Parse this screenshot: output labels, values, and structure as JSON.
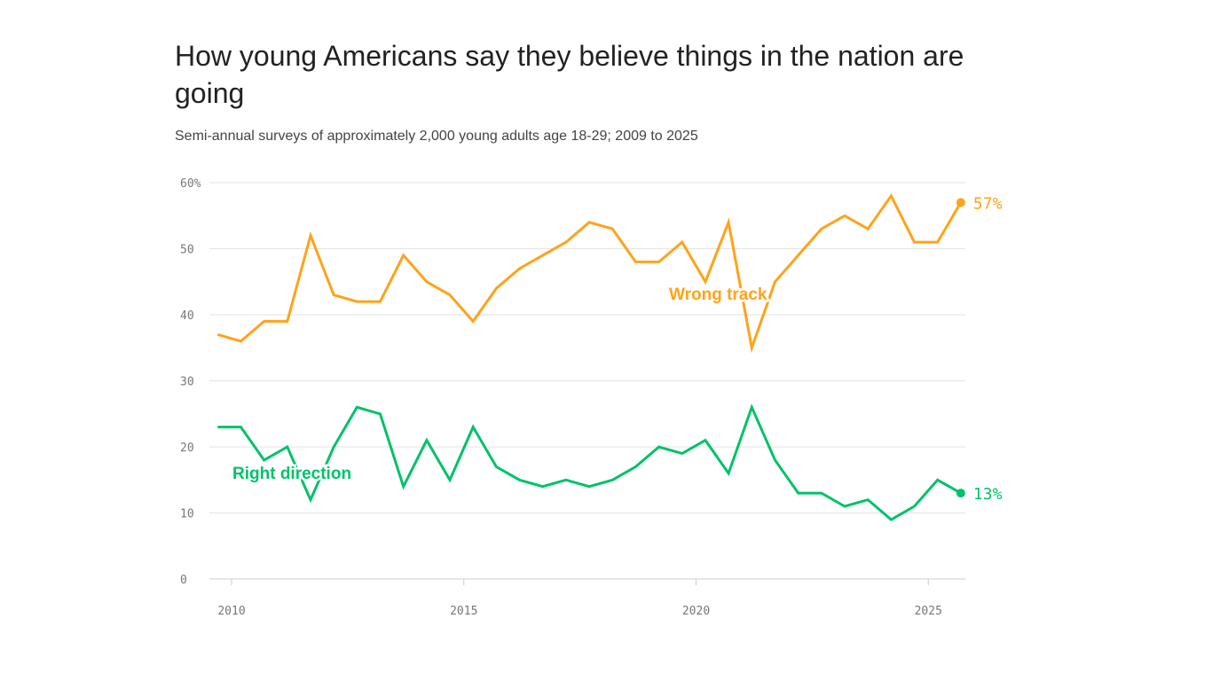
{
  "title": "How young Americans say they believe things in the nation are going",
  "subtitle": "Semi-annual surveys of approximately 2,000 young adults age 18-29; 2009 to 2025",
  "chart_data": {
    "type": "line",
    "title": "How young Americans say they believe things in the nation are going",
    "subtitle": "Semi-annual surveys of approximately 2,000 young adults age 18-29; 2009 to 2025",
    "xlabel": "",
    "ylabel": "",
    "xlim": [
      2009.6,
      2025.8
    ],
    "ylim": [
      0,
      60
    ],
    "x_ticks": [
      2010,
      2015,
      2020,
      2025
    ],
    "x_tick_labels": [
      "2010",
      "2015",
      "2020",
      "2025"
    ],
    "y_ticks": [
      0,
      10,
      20,
      30,
      40,
      50,
      60
    ],
    "y_tick_labels": [
      "0",
      "10",
      "20",
      "30",
      "40",
      "50",
      "60%"
    ],
    "grid": "horizontal",
    "x": [
      2009.7,
      2010.2,
      2010.7,
      2011.2,
      2011.7,
      2012.2,
      2012.7,
      2013.2,
      2013.7,
      2014.2,
      2014.7,
      2015.2,
      2015.7,
      2016.2,
      2016.7,
      2017.2,
      2017.7,
      2018.2,
      2018.7,
      2019.2,
      2019.7,
      2020.2,
      2020.7,
      2021.2,
      2021.7,
      2022.2,
      2022.7,
      2023.2,
      2023.7,
      2024.2,
      2024.7,
      2025.2,
      2025.7
    ],
    "series": [
      {
        "name": "Wrong track",
        "color": "#FFA31A",
        "end_label": "57%",
        "values": [
          37,
          36,
          39,
          39,
          52,
          43,
          42,
          42,
          49,
          45,
          43,
          39,
          44,
          47,
          49,
          51,
          54,
          53,
          48,
          48,
          51,
          45,
          54,
          35,
          45,
          49,
          53,
          55,
          53,
          58,
          51,
          51,
          57
        ]
      },
      {
        "name": "Right direction",
        "color": "#00C26A",
        "end_label": "13%",
        "values": [
          23,
          23,
          18,
          20,
          12,
          20,
          26,
          25,
          14,
          21,
          15,
          23,
          17,
          15,
          14,
          15,
          14,
          15,
          17,
          20,
          19,
          21,
          16,
          26,
          18,
          13,
          13,
          11,
          12,
          9,
          11,
          15,
          13
        ]
      }
    ]
  }
}
